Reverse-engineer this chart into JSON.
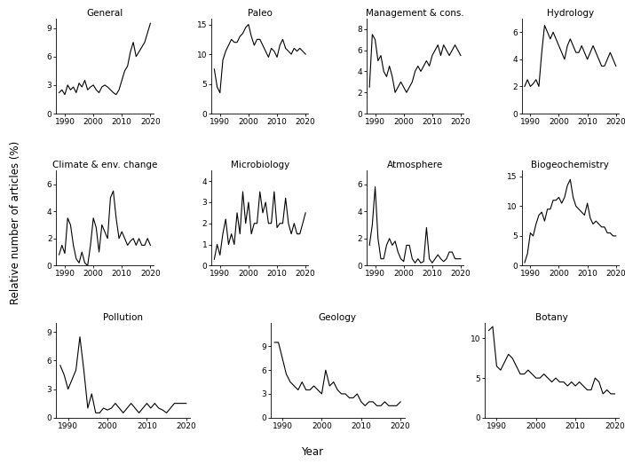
{
  "subplots": [
    {
      "title": "General",
      "ylim": [
        0,
        10
      ],
      "yticks": [
        0,
        3,
        6,
        9
      ],
      "years": [
        1988,
        1989,
        1990,
        1991,
        1992,
        1993,
        1994,
        1995,
        1996,
        1997,
        1998,
        1999,
        2000,
        2001,
        2002,
        2003,
        2004,
        2005,
        2006,
        2007,
        2008,
        2009,
        2010,
        2011,
        2012,
        2013,
        2014,
        2015,
        2016,
        2017,
        2018,
        2019,
        2020
      ],
      "values": [
        2.2,
        2.5,
        2.0,
        3.0,
        2.5,
        2.8,
        2.2,
        3.2,
        2.8,
        3.5,
        2.5,
        2.8,
        3.0,
        2.5,
        2.2,
        2.8,
        3.0,
        2.8,
        2.5,
        2.2,
        2.0,
        2.5,
        3.5,
        4.5,
        5.0,
        6.5,
        7.5,
        6.0,
        6.5,
        7.0,
        7.5,
        8.5,
        9.5
      ]
    },
    {
      "title": "Paleo",
      "ylim": [
        0,
        16
      ],
      "yticks": [
        0,
        5,
        10,
        15
      ],
      "years": [
        1988,
        1989,
        1990,
        1991,
        1992,
        1993,
        1994,
        1995,
        1996,
        1997,
        1998,
        1999,
        2000,
        2001,
        2002,
        2003,
        2004,
        2005,
        2006,
        2007,
        2008,
        2009,
        2010,
        2011,
        2012,
        2013,
        2014,
        2015,
        2016,
        2017,
        2018,
        2019,
        2020
      ],
      "values": [
        7.5,
        4.5,
        3.5,
        9.0,
        10.5,
        11.5,
        12.5,
        12.0,
        12.0,
        13.0,
        13.5,
        14.5,
        15.0,
        13.0,
        11.5,
        12.5,
        12.5,
        11.5,
        10.5,
        9.5,
        11.0,
        10.5,
        9.5,
        11.5,
        12.5,
        11.0,
        10.5,
        10.0,
        11.0,
        10.5,
        11.0,
        10.5,
        10.0
      ]
    },
    {
      "title": "Management & cons.",
      "ylim": [
        0,
        9
      ],
      "yticks": [
        0,
        2,
        4,
        6,
        8
      ],
      "years": [
        1988,
        1989,
        1990,
        1991,
        1992,
        1993,
        1994,
        1995,
        1996,
        1997,
        1998,
        1999,
        2000,
        2001,
        2002,
        2003,
        2004,
        2005,
        2006,
        2007,
        2008,
        2009,
        2010,
        2011,
        2012,
        2013,
        2014,
        2015,
        2016,
        2017,
        2018,
        2019,
        2020
      ],
      "values": [
        2.5,
        7.5,
        7.0,
        5.0,
        5.5,
        4.0,
        3.5,
        4.5,
        3.5,
        2.0,
        2.5,
        3.0,
        2.5,
        2.0,
        2.5,
        3.0,
        4.0,
        4.5,
        4.0,
        4.5,
        5.0,
        4.5,
        5.5,
        6.0,
        6.5,
        5.5,
        6.5,
        6.0,
        5.5,
        6.0,
        6.5,
        6.0,
        5.5
      ]
    },
    {
      "title": "Hydrology",
      "ylim": [
        0,
        7
      ],
      "yticks": [
        0,
        2,
        4,
        6
      ],
      "years": [
        1988,
        1989,
        1990,
        1991,
        1992,
        1993,
        1994,
        1995,
        1996,
        1997,
        1998,
        1999,
        2000,
        2001,
        2002,
        2003,
        2004,
        2005,
        2006,
        2007,
        2008,
        2009,
        2010,
        2011,
        2012,
        2013,
        2014,
        2015,
        2016,
        2017,
        2018,
        2019,
        2020
      ],
      "values": [
        2.0,
        2.5,
        2.0,
        2.2,
        2.5,
        2.0,
        4.5,
        6.5,
        6.0,
        5.5,
        6.0,
        5.5,
        5.0,
        4.5,
        4.0,
        5.0,
        5.5,
        5.0,
        4.5,
        4.5,
        5.0,
        4.5,
        4.0,
        4.5,
        5.0,
        4.5,
        4.0,
        3.5,
        3.5,
        4.0,
        4.5,
        4.0,
        3.5
      ]
    },
    {
      "title": "Climate & env. change",
      "ylim": [
        0,
        7
      ],
      "yticks": [
        0,
        2,
        4,
        6
      ],
      "years": [
        1988,
        1989,
        1990,
        1991,
        1992,
        1993,
        1994,
        1995,
        1996,
        1997,
        1998,
        1999,
        2000,
        2001,
        2002,
        2003,
        2004,
        2005,
        2006,
        2007,
        2008,
        2009,
        2010,
        2011,
        2012,
        2013,
        2014,
        2015,
        2016,
        2017,
        2018,
        2019,
        2020
      ],
      "values": [
        0.8,
        1.5,
        0.9,
        3.5,
        3.0,
        1.5,
        0.5,
        0.2,
        1.0,
        0.2,
        0.0,
        1.5,
        3.5,
        2.8,
        1.0,
        3.0,
        2.5,
        2.0,
        5.0,
        5.5,
        3.5,
        2.0,
        2.5,
        2.0,
        1.5,
        1.8,
        2.0,
        1.5,
        2.0,
        1.5,
        1.5,
        2.0,
        1.5
      ]
    },
    {
      "title": "Microbiology",
      "ylim": [
        0,
        4.5
      ],
      "yticks": [
        0,
        1,
        2,
        3,
        4
      ],
      "years": [
        1988,
        1989,
        1990,
        1991,
        1992,
        1993,
        1994,
        1995,
        1996,
        1997,
        1998,
        1999,
        2000,
        2001,
        2002,
        2003,
        2004,
        2005,
        2006,
        2007,
        2008,
        2009,
        2010,
        2011,
        2012,
        2013,
        2014,
        2015,
        2016,
        2017,
        2018,
        2019,
        2020
      ],
      "values": [
        0.3,
        1.0,
        0.5,
        1.5,
        2.2,
        1.0,
        1.5,
        1.0,
        2.5,
        1.5,
        3.5,
        2.0,
        3.0,
        1.5,
        2.0,
        2.0,
        3.5,
        2.5,
        3.0,
        2.0,
        2.0,
        3.5,
        1.8,
        2.0,
        2.0,
        3.2,
        2.0,
        1.5,
        2.0,
        1.5,
        1.5,
        2.0,
        2.5
      ]
    },
    {
      "title": "Atmosphere",
      "ylim": [
        0,
        7
      ],
      "yticks": [
        0,
        2,
        4,
        6
      ],
      "years": [
        1988,
        1989,
        1990,
        1991,
        1992,
        1993,
        1994,
        1995,
        1996,
        1997,
        1998,
        1999,
        2000,
        2001,
        2002,
        2003,
        2004,
        2005,
        2006,
        2007,
        2008,
        2009,
        2010,
        2011,
        2012,
        2013,
        2014,
        2015,
        2016,
        2017,
        2018,
        2019,
        2020
      ],
      "values": [
        1.5,
        3.0,
        5.8,
        2.0,
        0.5,
        0.5,
        1.5,
        2.0,
        1.5,
        1.8,
        1.0,
        0.5,
        0.3,
        1.5,
        1.5,
        0.5,
        0.2,
        0.5,
        0.2,
        0.3,
        2.8,
        0.5,
        0.2,
        0.5,
        0.8,
        0.5,
        0.3,
        0.5,
        1.0,
        1.0,
        0.5,
        0.5,
        0.5
      ]
    },
    {
      "title": "Biogeochemistry",
      "ylim": [
        0,
        16
      ],
      "yticks": [
        0,
        5,
        10,
        15
      ],
      "years": [
        1988,
        1989,
        1990,
        1991,
        1992,
        1993,
        1994,
        1995,
        1996,
        1997,
        1998,
        1999,
        2000,
        2001,
        2002,
        2003,
        2004,
        2005,
        2006,
        2007,
        2008,
        2009,
        2010,
        2011,
        2012,
        2013,
        2014,
        2015,
        2016,
        2017,
        2018,
        2019,
        2020
      ],
      "values": [
        0.5,
        2.0,
        5.5,
        5.0,
        7.0,
        8.5,
        9.0,
        7.5,
        9.5,
        9.5,
        11.0,
        11.0,
        11.5,
        10.5,
        11.5,
        13.5,
        14.5,
        11.5,
        10.0,
        9.5,
        9.0,
        8.5,
        10.5,
        8.0,
        7.0,
        7.5,
        7.0,
        6.5,
        6.5,
        5.5,
        5.5,
        5.0,
        5.0
      ]
    },
    {
      "title": "Pollution",
      "ylim": [
        0,
        10
      ],
      "yticks": [
        0,
        3,
        6,
        9
      ],
      "years": [
        1988,
        1989,
        1990,
        1991,
        1992,
        1993,
        1994,
        1995,
        1996,
        1997,
        1998,
        1999,
        2000,
        2001,
        2002,
        2003,
        2004,
        2005,
        2006,
        2007,
        2008,
        2009,
        2010,
        2011,
        2012,
        2013,
        2014,
        2015,
        2016,
        2017,
        2018,
        2019,
        2020
      ],
      "values": [
        5.5,
        4.5,
        3.0,
        4.0,
        5.0,
        8.5,
        5.0,
        1.0,
        2.5,
        0.5,
        0.5,
        1.0,
        0.8,
        1.0,
        1.5,
        1.0,
        0.5,
        1.0,
        1.5,
        1.0,
        0.5,
        1.0,
        1.5,
        1.0,
        1.5,
        1.0,
        0.8,
        0.5,
        1.0,
        1.5,
        1.5,
        1.5,
        1.5
      ]
    },
    {
      "title": "Geology",
      "ylim": [
        0,
        12
      ],
      "yticks": [
        0,
        3,
        6,
        9
      ],
      "years": [
        1988,
        1989,
        1990,
        1991,
        1992,
        1993,
        1994,
        1995,
        1996,
        1997,
        1998,
        1999,
        2000,
        2001,
        2002,
        2003,
        2004,
        2005,
        2006,
        2007,
        2008,
        2009,
        2010,
        2011,
        2012,
        2013,
        2014,
        2015,
        2016,
        2017,
        2018,
        2019,
        2020
      ],
      "values": [
        9.5,
        9.5,
        7.5,
        5.5,
        4.5,
        4.0,
        3.5,
        4.5,
        3.5,
        3.5,
        4.0,
        3.5,
        3.0,
        6.0,
        4.0,
        4.5,
        3.5,
        3.0,
        3.0,
        2.5,
        2.5,
        3.0,
        2.0,
        1.5,
        2.0,
        2.0,
        1.5,
        1.5,
        2.0,
        1.5,
        1.5,
        1.5,
        2.0
      ]
    },
    {
      "title": "Botany",
      "ylim": [
        0,
        12
      ],
      "yticks": [
        0,
        5,
        10
      ],
      "years": [
        1988,
        1989,
        1990,
        1991,
        1992,
        1993,
        1994,
        1995,
        1996,
        1997,
        1998,
        1999,
        2000,
        2001,
        2002,
        2003,
        2004,
        2005,
        2006,
        2007,
        2008,
        2009,
        2010,
        2011,
        2012,
        2013,
        2014,
        2015,
        2016,
        2017,
        2018,
        2019,
        2020
      ],
      "values": [
        11.0,
        11.5,
        6.5,
        6.0,
        7.0,
        8.0,
        7.5,
        6.5,
        5.5,
        5.5,
        6.0,
        5.5,
        5.0,
        5.0,
        5.5,
        5.0,
        4.5,
        5.0,
        4.5,
        4.5,
        4.0,
        4.5,
        4.0,
        4.5,
        4.0,
        3.5,
        3.5,
        5.0,
        4.5,
        3.0,
        3.5,
        3.0,
        3.0
      ]
    }
  ],
  "row_counts": [
    4,
    4,
    3
  ],
  "xlabel": "Year",
  "ylabel": "Relative number of articles (%)",
  "line_color": "#000000",
  "line_width": 0.8,
  "xticks": [
    1990,
    2000,
    2010,
    2020
  ],
  "xlim": [
    1987,
    2021
  ],
  "background_color": "#ffffff",
  "title_fontsize": 7.5,
  "tick_fontsize": 6.5,
  "label_fontsize": 8.5
}
